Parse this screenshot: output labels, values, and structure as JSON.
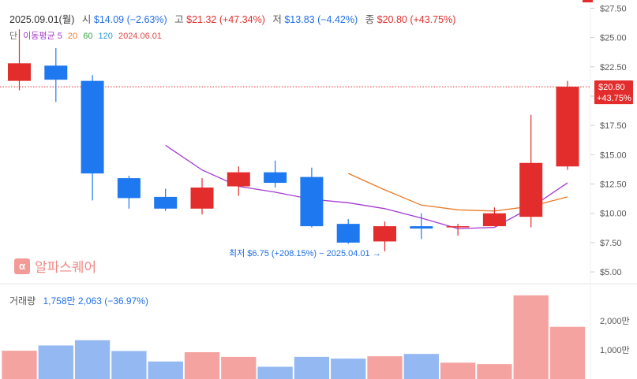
{
  "header": {
    "date": "2025.09.01(월)",
    "open_label": "시",
    "open": "$14.09 (−2.63%)",
    "high_label": "고",
    "high": "$21.32 (+47.34%)",
    "low_label": "저",
    "low": "$13.83 (−4.42%)",
    "close_label": "종",
    "close": "$20.80 (+43.75%)"
  },
  "ma_legend": {
    "prefix": "단",
    "ma5": "이동평균 5",
    "ma20": "20",
    "ma60": "60",
    "ma120": "120",
    "date": "2024.06.01"
  },
  "volume_header": {
    "label": "거래량",
    "value": "1,758만 2,063 (−36.97%)"
  },
  "watermark": {
    "logo_glyph": "α",
    "text": "알파스퀘어"
  },
  "colors": {
    "up": "#e32c2c",
    "down": "#1e78f0",
    "vol_up": "#f4a3a1",
    "vol_down": "#93b8f2",
    "ma5": "#a33ad0",
    "ma20": "#ea7a2a",
    "current": "#e32c2c",
    "grid": "#eeeeee"
  },
  "chart_data": {
    "type": "candlestick",
    "y_ticks": [
      "$27.50",
      "$25.00",
      "$22.50",
      "$20.00",
      "$17.50",
      "$15.00",
      "$12.50",
      "$10.00",
      "$7.50",
      "$5.00"
    ],
    "y_tick_values": [
      27.5,
      25,
      22.5,
      20,
      17.5,
      15,
      12.5,
      10,
      7.5,
      5
    ],
    "ylim": [
      4.2,
      28.2
    ],
    "volume_ticks": [
      "2,000만",
      "1,000만"
    ],
    "volume_tick_values": [
      2000,
      1000
    ],
    "volume_ylim": [
      0,
      3000
    ],
    "current_price_label": "$20.80",
    "current_change_label": "+43.75%",
    "current_price": 20.8,
    "low_annotation": "최저 $6.75 (+208.15%) − 2025.04.01",
    "candles": [
      {
        "o": 21.3,
        "h": 25.7,
        "l": 20.5,
        "c": 22.8,
        "v": 970
      },
      {
        "o": 22.6,
        "h": 24.1,
        "l": 19.5,
        "c": 21.4,
        "v": 1150
      },
      {
        "o": 21.3,
        "h": 21.8,
        "l": 11.1,
        "c": 13.4,
        "v": 1330
      },
      {
        "o": 13.0,
        "h": 13.2,
        "l": 10.4,
        "c": 11.3,
        "v": 960
      },
      {
        "o": 11.4,
        "h": 12.1,
        "l": 10.2,
        "c": 10.4,
        "v": 600
      },
      {
        "o": 10.4,
        "h": 13.0,
        "l": 9.9,
        "c": 12.2,
        "v": 920
      },
      {
        "o": 12.3,
        "h": 14.0,
        "l": 11.5,
        "c": 13.5,
        "v": 760
      },
      {
        "o": 13.5,
        "h": 14.5,
        "l": 12.2,
        "c": 12.6,
        "v": 420
      },
      {
        "o": 13.1,
        "h": 13.9,
        "l": 8.8,
        "c": 8.9,
        "v": 760
      },
      {
        "o": 9.1,
        "h": 9.5,
        "l": 7.4,
        "c": 7.5,
        "v": 700
      },
      {
        "o": 7.6,
        "h": 9.3,
        "l": 6.75,
        "c": 8.9,
        "v": 780
      },
      {
        "o": 8.9,
        "h": 10.0,
        "l": 7.8,
        "c": 8.7,
        "v": 860
      },
      {
        "o": 8.8,
        "h": 9.1,
        "l": 8.1,
        "c": 8.9,
        "v": 560
      },
      {
        "o": 8.9,
        "h": 10.5,
        "l": 8.9,
        "c": 10.0,
        "v": 510
      },
      {
        "o": 9.7,
        "h": 18.4,
        "l": 8.8,
        "c": 14.3,
        "v": 2870
      },
      {
        "o": 14.0,
        "h": 21.3,
        "l": 13.7,
        "c": 20.8,
        "v": 1790
      }
    ],
    "ma5": [
      null,
      null,
      null,
      null,
      15.8,
      13.7,
      12.3,
      11.8,
      11.2,
      10.9,
      10.4,
      9.6,
      8.7,
      8.8,
      10.5,
      12.6
    ],
    "ma20": [
      null,
      null,
      null,
      null,
      null,
      null,
      null,
      null,
      null,
      13.4,
      12.0,
      10.7,
      10.3,
      10.2,
      10.6,
      11.4
    ]
  }
}
